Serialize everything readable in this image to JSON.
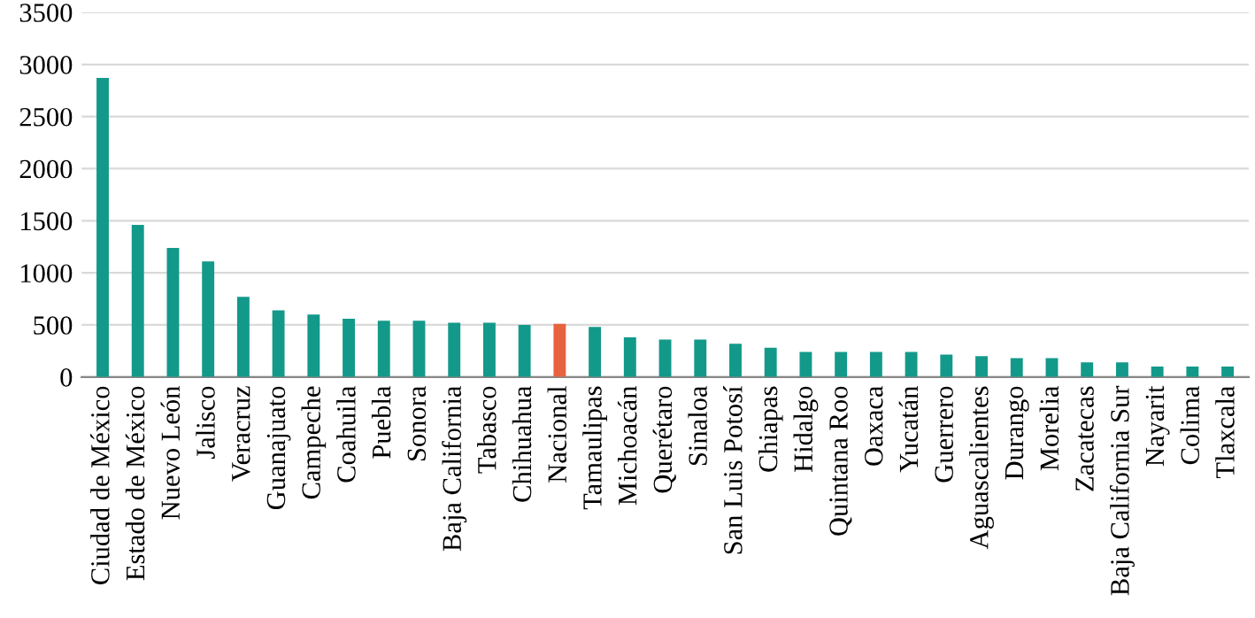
{
  "chart_data": {
    "type": "bar",
    "categories": [
      "Ciudad de México",
      "Estado de México",
      "Nuevo León",
      "Jalisco",
      "Veracruz",
      "Guanajuato",
      "Campeche",
      "Coahuila",
      "Puebla",
      "Sonora",
      "Baja California",
      "Tabasco",
      "Chihuahua",
      "Nacional",
      "Tamaulipas",
      "Michoacán",
      "Querétaro",
      "Sinaloa",
      "San Luis Potosí",
      "Chiapas",
      "Hidalgo",
      "Quintana Roo",
      "Oaxaca",
      "Yucatán",
      "Guerrero",
      "Aguascalientes",
      "Durango",
      "Morelia",
      "Zacatecas",
      "Baja California Sur",
      "Nayarit",
      "Colima",
      "Tlaxcala"
    ],
    "values": [
      2870,
      1460,
      1240,
      1110,
      770,
      640,
      600,
      560,
      540,
      540,
      520,
      520,
      500,
      510,
      480,
      380,
      360,
      360,
      320,
      280,
      240,
      240,
      240,
      240,
      215,
      200,
      180,
      180,
      140,
      140,
      100,
      100,
      100
    ],
    "colors": [
      "#13998a",
      "#13998a",
      "#13998a",
      "#13998a",
      "#13998a",
      "#13998a",
      "#13998a",
      "#13998a",
      "#13998a",
      "#13998a",
      "#13998a",
      "#13998a",
      "#13998a",
      "#e7623f",
      "#13998a",
      "#13998a",
      "#13998a",
      "#13998a",
      "#13998a",
      "#13998a",
      "#13998a",
      "#13998a",
      "#13998a",
      "#13998a",
      "#13998a",
      "#13998a",
      "#13998a",
      "#13998a",
      "#13998a",
      "#13998a",
      "#13998a",
      "#13998a",
      "#13998a"
    ],
    "ylim": [
      0,
      3500
    ],
    "yticks": [
      0,
      500,
      1000,
      1500,
      2000,
      2500,
      3000,
      3500
    ],
    "grid": "y"
  }
}
